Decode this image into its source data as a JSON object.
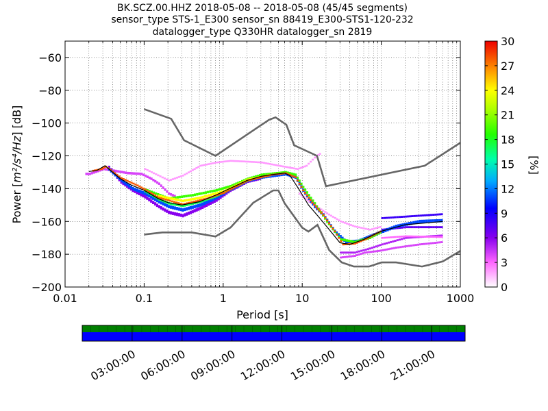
{
  "chart_data": {
    "type": "heatmap",
    "title_lines": [
      "BK.SCZ.00.HHZ   2018-05-08 -- 2018-05-08  (45/45 segments)",
      "sensor_type STS-1_E300 sensor_sn 88419_E300-STS1-120-232",
      "datalogger_type Q330HR datalogger_sn 2819"
    ],
    "xlabel": "Period [s]",
    "ylabel_prefix": "Power [",
    "ylabel_math": "m²/s⁴/Hz",
    "ylabel_suffix": "] [dB]",
    "x_scale": "log",
    "xlim": [
      0.01,
      1000
    ],
    "ylim": [
      -200,
      -50
    ],
    "x_ticks": [
      0.01,
      0.1,
      1,
      10,
      100,
      1000
    ],
    "x_tick_labels": [
      "0.01",
      "0.1",
      "1",
      "10",
      "100",
      "1000"
    ],
    "y_ticks": [
      -200,
      -180,
      -160,
      -140,
      -120,
      -100,
      -80,
      -60
    ],
    "y_tick_labels": [
      "−200",
      "−180",
      "−160",
      "−140",
      "−120",
      "−100",
      "−80",
      "−60"
    ],
    "grid": true,
    "colorbar": {
      "label": "[%]",
      "range": [
        0,
        30
      ],
      "ticks": [
        0,
        3,
        6,
        9,
        12,
        15,
        18,
        21,
        24,
        27,
        30
      ],
      "tick_labels": [
        "0",
        "3",
        "6",
        "9",
        "12",
        "15",
        "18",
        "21",
        "24",
        "27",
        "30"
      ]
    },
    "noise_models": [
      {
        "name": "high noise model",
        "points": [
          [
            0.1,
            -91.5
          ],
          [
            0.22,
            -97.4
          ],
          [
            0.32,
            -110.5
          ],
          [
            0.8,
            -120
          ],
          [
            3.8,
            -98
          ],
          [
            4.6,
            -96.5
          ],
          [
            6.3,
            -101
          ],
          [
            7.9,
            -113.5
          ],
          [
            15.4,
            -120
          ],
          [
            20,
            -138.5
          ],
          [
            354.8,
            -126
          ],
          [
            1000,
            -112
          ]
        ]
      },
      {
        "name": "low noise model",
        "points": [
          [
            0.1,
            -168
          ],
          [
            0.17,
            -166.7
          ],
          [
            0.4,
            -166.7
          ],
          [
            0.8,
            -169.2
          ],
          [
            1.24,
            -163.7
          ],
          [
            2.4,
            -148.6
          ],
          [
            4.3,
            -141.1
          ],
          [
            5,
            -141.1
          ],
          [
            6,
            -149
          ],
          [
            10,
            -163.8
          ],
          [
            12,
            -166.2
          ],
          [
            15.6,
            -162.1
          ],
          [
            21.9,
            -177.5
          ],
          [
            31.6,
            -185
          ],
          [
            45,
            -187.5
          ],
          [
            70,
            -187.5
          ],
          [
            101,
            -185
          ],
          [
            154,
            -185
          ],
          [
            328,
            -187.5
          ],
          [
            600,
            -184.4
          ],
          [
            1000,
            -178
          ]
        ]
      }
    ],
    "median_curve": [
      [
        0.02,
        -129.5
      ],
      [
        0.025,
        -129
      ],
      [
        0.032,
        -126
      ],
      [
        0.04,
        -130
      ],
      [
        0.05,
        -134
      ],
      [
        0.07,
        -138
      ],
      [
        0.1,
        -141
      ],
      [
        0.15,
        -146
      ],
      [
        0.2,
        -148.5
      ],
      [
        0.3,
        -150
      ],
      [
        0.5,
        -148
      ],
      [
        0.8,
        -144
      ],
      [
        1.2,
        -140
      ],
      [
        2,
        -135
      ],
      [
        3,
        -132.5
      ],
      [
        4,
        -131.5
      ],
      [
        6,
        -130.5
      ],
      [
        7,
        -132
      ],
      [
        9,
        -140
      ],
      [
        12,
        -150
      ],
      [
        16,
        -157
      ],
      [
        22,
        -165
      ],
      [
        30,
        -173
      ],
      [
        40,
        -174
      ],
      [
        60,
        -171
      ],
      [
        100,
        -166
      ],
      [
        200,
        -162
      ],
      [
        600,
        -160
      ]
    ],
    "pdf_bands": [
      {
        "percent": 2,
        "spread": 1.0,
        "points": [
          [
            0.1,
            -128
          ],
          [
            0.2,
            -135
          ],
          [
            0.3,
            -132
          ],
          [
            0.5,
            -126
          ],
          [
            0.8,
            -124
          ],
          [
            1.2,
            -123
          ],
          [
            2,
            -123.5
          ],
          [
            3,
            -124
          ],
          [
            5,
            -126
          ],
          [
            6.5,
            -127
          ],
          [
            8.5,
            -128
          ],
          [
            11,
            -126
          ],
          [
            14,
            -121
          ],
          [
            17,
            -118
          ]
        ]
      },
      {
        "percent": 2,
        "spread": 1.0,
        "points": [
          [
            9,
            -143
          ],
          [
            12,
            -148
          ],
          [
            15,
            -151
          ],
          [
            20,
            -155
          ],
          [
            30,
            -160
          ],
          [
            45,
            -163
          ],
          [
            70,
            -165
          ],
          [
            100,
            -163
          ]
        ]
      },
      {
        "percent": 4,
        "spread": 1.5,
        "points": [
          [
            0.018,
            -131
          ],
          [
            0.02,
            -131
          ],
          [
            0.03,
            -128
          ],
          [
            0.04,
            -129
          ],
          [
            0.06,
            -130.5
          ],
          [
            0.09,
            -131
          ],
          [
            0.12,
            -134
          ],
          [
            0.15,
            -137
          ]
        ]
      },
      {
        "percent": 4,
        "spread": 1.5,
        "points": [
          [
            0.15,
            -137
          ],
          [
            0.2,
            -143
          ],
          [
            0.25,
            -145
          ]
        ]
      },
      {
        "percent": 4,
        "spread": 1.2,
        "points": [
          [
            30,
            -182
          ],
          [
            45,
            -181
          ],
          [
            60,
            -179
          ],
          [
            90,
            -178
          ],
          [
            150,
            -176
          ],
          [
            300,
            -174
          ],
          [
            600,
            -172.5
          ]
        ]
      },
      {
        "percent": 5,
        "spread": 1.2,
        "points": [
          [
            30,
            -179
          ],
          [
            45,
            -179
          ],
          [
            70,
            -176.5
          ],
          [
            100,
            -174
          ],
          [
            200,
            -170
          ],
          [
            600,
            -168.5
          ]
        ]
      },
      {
        "percent": 7,
        "spread": 1.2,
        "points": [
          [
            100,
            -165
          ],
          [
            200,
            -163.5
          ],
          [
            600,
            -163.5
          ]
        ]
      },
      {
        "percent": 8,
        "spread": 1.2,
        "points": [
          [
            100,
            -158
          ],
          [
            200,
            -157
          ],
          [
            600,
            -155.5
          ]
        ]
      },
      {
        "percent": 3,
        "spread": 1.0,
        "points": [
          [
            100,
            -170
          ],
          [
            200,
            -169
          ],
          [
            600,
            -169.5
          ]
        ]
      },
      {
        "percent": 6,
        "spread": 2.0,
        "points": [
          [
            0.035,
            -127
          ],
          [
            0.05,
            -136
          ],
          [
            0.07,
            -141
          ],
          [
            0.1,
            -145
          ],
          [
            0.15,
            -151
          ],
          [
            0.2,
            -154.5
          ],
          [
            0.3,
            -156.5
          ],
          [
            0.5,
            -152
          ],
          [
            0.8,
            -147
          ],
          [
            1.2,
            -141
          ],
          [
            2,
            -135.5
          ],
          [
            3,
            -133.5
          ]
        ]
      },
      {
        "percent": 11,
        "spread": 2.0,
        "points": [
          [
            0.035,
            -128
          ],
          [
            0.05,
            -135
          ],
          [
            0.07,
            -140
          ],
          [
            0.1,
            -143
          ],
          [
            0.15,
            -148
          ],
          [
            0.2,
            -151
          ],
          [
            0.3,
            -153
          ],
          [
            0.5,
            -150
          ],
          [
            0.8,
            -145.5
          ],
          [
            1.2,
            -140.5
          ],
          [
            2,
            -135
          ],
          [
            3,
            -133
          ],
          [
            6,
            -131
          ],
          [
            8,
            -133
          ],
          [
            10,
            -141
          ],
          [
            14,
            -151
          ],
          [
            18,
            -156
          ],
          [
            25,
            -166
          ],
          [
            35,
            -172.5
          ],
          [
            50,
            -172
          ],
          [
            80,
            -168
          ],
          [
            150,
            -163
          ],
          [
            300,
            -160
          ],
          [
            600,
            -159.5
          ]
        ]
      },
      {
        "percent": 17,
        "spread": 1.5,
        "points": [
          [
            0.1,
            -141.5
          ],
          [
            0.15,
            -146.5
          ],
          [
            0.2,
            -149
          ],
          [
            0.3,
            -150.5
          ],
          [
            0.5,
            -148
          ],
          [
            0.8,
            -144.5
          ],
          [
            1.2,
            -140
          ],
          [
            2,
            -135
          ],
          [
            3,
            -132.5
          ]
        ]
      },
      {
        "percent": 19,
        "spread": 1.5,
        "points": [
          [
            0.1,
            -140.5
          ],
          [
            0.2,
            -146
          ],
          [
            0.4,
            -144
          ],
          [
            0.8,
            -141
          ],
          [
            1.2,
            -138.5
          ],
          [
            2,
            -134
          ],
          [
            3,
            -131.5
          ],
          [
            6,
            -130
          ],
          [
            8,
            -131.5
          ],
          [
            10,
            -139
          ],
          [
            14,
            -149
          ],
          [
            20,
            -160
          ],
          [
            30,
            -171
          ],
          [
            45,
            -172.5
          ],
          [
            70,
            -170
          ],
          [
            100,
            -166
          ]
        ]
      },
      {
        "percent": 24,
        "spread": 1.5,
        "points": [
          [
            0.15,
            -144.5
          ],
          [
            0.3,
            -147.5
          ],
          [
            0.5,
            -145.5
          ],
          [
            1,
            -141.5
          ],
          [
            2,
            -134.5
          ],
          [
            4,
            -131.5
          ]
        ]
      },
      {
        "percent": 28,
        "spread": 1.0,
        "points": [
          [
            0.022,
            -129
          ],
          [
            0.028,
            -128
          ],
          [
            0.032,
            -126.5
          ],
          [
            0.05,
            -133.5
          ],
          [
            0.08,
            -138
          ],
          [
            0.1,
            -140.5
          ],
          [
            0.15,
            -145.5
          ],
          [
            0.3,
            -149.5
          ],
          [
            0.6,
            -146
          ],
          [
            1,
            -142.5
          ],
          [
            2,
            -135
          ],
          [
            4,
            -131.5
          ],
          [
            6,
            -130.5
          ],
          [
            8,
            -133
          ],
          [
            10,
            -141
          ],
          [
            13,
            -148.5
          ],
          [
            18,
            -156
          ],
          [
            25,
            -166
          ],
          [
            32,
            -174
          ],
          [
            45,
            -173.5
          ],
          [
            60,
            -171
          ],
          [
            100,
            -165.5
          ]
        ]
      }
    ]
  },
  "time_axis": {
    "tick_labels": [
      "03:00:00",
      "06:00:00",
      "09:00:00",
      "12:00:00",
      "15:00:00",
      "18:00:00",
      "21:00:00"
    ],
    "tick_fractions": [
      0.1304,
      0.2609,
      0.3913,
      0.5217,
      0.6522,
      0.7826,
      0.913
    ],
    "segment_count": 45,
    "upper_bar_color": "#007f00",
    "lower_bar_color": "#0000ff"
  },
  "colors": {
    "noise_model": "#666666",
    "median": "#000000"
  }
}
